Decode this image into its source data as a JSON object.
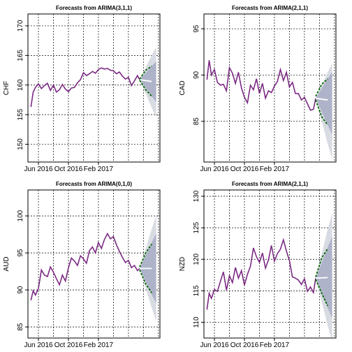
{
  "chart_data": [
    {
      "type": "line",
      "title": "Forecasts from ARIMA(3,1,1)",
      "ylabel": "CHF",
      "xlabel": "",
      "ylim": [
        147,
        172
      ],
      "yticks": [
        150,
        155,
        160,
        165,
        170
      ],
      "xticks": [
        {
          "label": "Jun 2016",
          "x": 6
        },
        {
          "label": "Oct 2016",
          "x": 10
        },
        {
          "label": "Feb 2017",
          "x": 14
        }
      ],
      "xlim": [
        4.6,
        22.2
      ],
      "grid": true,
      "series": [
        {
          "role": "history",
          "color": "#7b2a83",
          "points": [
            [
              5.0,
              156.3
            ],
            [
              5.3,
              158.8
            ],
            [
              5.6,
              159.6
            ],
            [
              6.0,
              160.2
            ],
            [
              6.4,
              159.4
            ],
            [
              6.8,
              159.9
            ],
            [
              7.2,
              160.3
            ],
            [
              7.6,
              159.1
            ],
            [
              8.0,
              160.0
            ],
            [
              8.4,
              158.8
            ],
            [
              8.8,
              159.2
            ],
            [
              9.2,
              160.1
            ],
            [
              9.6,
              159.3
            ],
            [
              10.0,
              158.9
            ],
            [
              10.4,
              159.5
            ],
            [
              10.8,
              159.6
            ],
            [
              11.2,
              160.4
            ],
            [
              11.6,
              160.9
            ],
            [
              12.0,
              162.1
            ],
            [
              12.4,
              161.6
            ],
            [
              12.8,
              161.9
            ],
            [
              13.2,
              162.3
            ],
            [
              13.6,
              162.0
            ],
            [
              14.0,
              162.6
            ],
            [
              14.4,
              162.9
            ],
            [
              14.8,
              162.7
            ],
            [
              15.2,
              162.8
            ],
            [
              15.6,
              162.5
            ],
            [
              16.0,
              162.4
            ],
            [
              16.4,
              161.9
            ],
            [
              16.8,
              162.2
            ],
            [
              17.2,
              161.5
            ],
            [
              17.6,
              161.0
            ],
            [
              18.0,
              161.3
            ],
            [
              18.4,
              159.9
            ],
            [
              18.8,
              160.7
            ],
            [
              19.2,
              161.6
            ],
            [
              19.5,
              160.9
            ]
          ]
        },
        {
          "role": "forecast",
          "color": "#ffffff",
          "points": [
            [
              19.5,
              160.9
            ],
            [
              21.1,
              160.6
            ]
          ]
        },
        {
          "role": "upper-80",
          "color": "#006400",
          "points": [
            [
              19.5,
              161.0
            ],
            [
              20.3,
              162.5
            ],
            [
              21.1,
              163.2
            ]
          ]
        },
        {
          "role": "lower-80",
          "color": "#006400",
          "points": [
            [
              19.5,
              160.8
            ],
            [
              20.3,
              159.2
            ],
            [
              21.1,
              158.1
            ]
          ]
        }
      ],
      "band80": [
        160.9,
        163.2,
        158.1
      ],
      "band95": [
        160.9,
        165.0,
        156.2
      ]
    },
    {
      "type": "line",
      "title": "Forecasts from ARIMA(2,1,1)",
      "ylabel": "CAD",
      "xlabel": "",
      "ylim": [
        80.6,
        96.6
      ],
      "yticks": [
        85,
        90,
        95
      ],
      "xticks": [
        {
          "label": "Jun 2016",
          "x": 6
        },
        {
          "label": "Oct 2016",
          "x": 10
        },
        {
          "label": "Feb 2017",
          "x": 14
        }
      ],
      "xlim": [
        4.6,
        22.2
      ],
      "grid": true,
      "series": [
        {
          "role": "history",
          "color": "#7b2a83",
          "points": [
            [
              5.0,
              89.5
            ],
            [
              5.3,
              91.6
            ],
            [
              5.6,
              90.0
            ],
            [
              6.0,
              90.6
            ],
            [
              6.4,
              89.2
            ],
            [
              6.8,
              88.9
            ],
            [
              7.2,
              89.0
            ],
            [
              7.6,
              88.3
            ],
            [
              8.0,
              90.8
            ],
            [
              8.4,
              90.2
            ],
            [
              8.8,
              89.1
            ],
            [
              9.2,
              90.3
            ],
            [
              9.6,
              88.6
            ],
            [
              10.0,
              87.6
            ],
            [
              10.4,
              87.0
            ],
            [
              10.8,
              88.9
            ],
            [
              11.2,
              88.4
            ],
            [
              11.6,
              89.6
            ],
            [
              12.0,
              88.0
            ],
            [
              12.4,
              89.1
            ],
            [
              12.8,
              87.5
            ],
            [
              13.2,
              88.3
            ],
            [
              13.6,
              88.1
            ],
            [
              14.0,
              88.8
            ],
            [
              14.4,
              89.3
            ],
            [
              14.8,
              90.6
            ],
            [
              15.2,
              89.4
            ],
            [
              15.6,
              90.3
            ],
            [
              16.0,
              88.7
            ],
            [
              16.4,
              89.2
            ],
            [
              16.8,
              88.0
            ],
            [
              17.2,
              88.0
            ],
            [
              17.6,
              87.3
            ],
            [
              18.0,
              87.6
            ],
            [
              18.4,
              86.9
            ],
            [
              18.8,
              86.2
            ],
            [
              19.2,
              86.3
            ],
            [
              19.5,
              87.5
            ]
          ]
        },
        {
          "role": "forecast",
          "color": "#ffffff",
          "points": [
            [
              19.5,
              87.5
            ],
            [
              21.1,
              87.3
            ]
          ]
        },
        {
          "role": "upper-80",
          "color": "#006400",
          "points": [
            [
              19.5,
              87.7
            ],
            [
              20.3,
              89.0
            ],
            [
              21.1,
              89.6
            ]
          ]
        },
        {
          "role": "lower-80",
          "color": "#006400",
          "points": [
            [
              19.5,
              87.3
            ],
            [
              20.3,
              85.5
            ],
            [
              21.1,
              84.6
            ]
          ]
        }
      ],
      "band80": [
        87.5,
        89.6,
        84.6
      ],
      "band95": [
        87.5,
        90.3,
        82.6
      ]
    },
    {
      "type": "line",
      "title": "Forecasts from ARIMA(0,1,0)",
      "ylabel": "AUD",
      "xlabel": "",
      "ylim": [
        83.5,
        103.5
      ],
      "yticks": [
        85,
        90,
        95,
        100
      ],
      "xticks": [
        {
          "label": "Jun 2016",
          "x": 6
        },
        {
          "label": "Oct 2016",
          "x": 10
        },
        {
          "label": "Feb 2017",
          "x": 14
        }
      ],
      "xlim": [
        4.6,
        22.2
      ],
      "grid": true,
      "series": [
        {
          "role": "history",
          "color": "#7b2a83",
          "points": [
            [
              5.0,
              88.6
            ],
            [
              5.3,
              89.9
            ],
            [
              5.6,
              89.3
            ],
            [
              6.0,
              90.2
            ],
            [
              6.4,
              92.7
            ],
            [
              6.8,
              92.0
            ],
            [
              7.2,
              91.8
            ],
            [
              7.6,
              93.1
            ],
            [
              8.0,
              92.4
            ],
            [
              8.4,
              91.5
            ],
            [
              8.8,
              90.7
            ],
            [
              9.2,
              92.0
            ],
            [
              9.6,
              91.2
            ],
            [
              10.0,
              93.0
            ],
            [
              10.4,
              94.3
            ],
            [
              10.8,
              93.9
            ],
            [
              11.2,
              93.3
            ],
            [
              11.6,
              94.6
            ],
            [
              12.0,
              94.2
            ],
            [
              12.4,
              93.6
            ],
            [
              12.8,
              95.3
            ],
            [
              13.2,
              95.8
            ],
            [
              13.6,
              95.0
            ],
            [
              14.0,
              96.4
            ],
            [
              14.4,
              95.6
            ],
            [
              14.8,
              96.8
            ],
            [
              15.2,
              97.6
            ],
            [
              15.6,
              96.9
            ],
            [
              16.0,
              97.2
            ],
            [
              16.4,
              96.1
            ],
            [
              16.8,
              95.2
            ],
            [
              17.2,
              94.4
            ],
            [
              17.6,
              93.7
            ],
            [
              18.0,
              94.0
            ],
            [
              18.4,
              93.0
            ],
            [
              18.8,
              93.3
            ],
            [
              19.2,
              92.6
            ],
            [
              19.5,
              92.9
            ]
          ]
        },
        {
          "role": "forecast",
          "color": "#ffffff",
          "points": [
            [
              19.5,
              92.9
            ],
            [
              21.1,
              92.9
            ]
          ]
        },
        {
          "role": "upper-80",
          "color": "#006400",
          "points": [
            [
              19.5,
              93.1
            ],
            [
              20.3,
              95.0
            ],
            [
              21.1,
              96.2
            ]
          ]
        },
        {
          "role": "lower-80",
          "color": "#006400",
          "points": [
            [
              19.5,
              92.7
            ],
            [
              20.3,
              90.8
            ],
            [
              21.1,
              89.6
            ]
          ]
        }
      ],
      "band80": [
        92.9,
        96.4,
        89.4
      ],
      "band95": [
        92.9,
        98.2,
        87.6
      ]
    },
    {
      "type": "line",
      "title": "Forecasts from ARIMA(2,1,1)",
      "ylabel": "NZD",
      "xlabel": "",
      "ylim": [
        107.5,
        131
      ],
      "yticks": [
        110,
        115,
        120,
        125,
        130
      ],
      "xticks": [
        {
          "label": "Jun 2016",
          "x": 6
        },
        {
          "label": "Oct 2016",
          "x": 10
        },
        {
          "label": "Feb 2017",
          "x": 14
        }
      ],
      "xlim": [
        4.6,
        22.2
      ],
      "grid": true,
      "series": [
        {
          "role": "history",
          "color": "#7b2a83",
          "points": [
            [
              5.0,
              112.0
            ],
            [
              5.3,
              114.6
            ],
            [
              5.6,
              113.8
            ],
            [
              6.0,
              115.2
            ],
            [
              6.4,
              114.9
            ],
            [
              6.8,
              116.5
            ],
            [
              7.2,
              118.0
            ],
            [
              7.6,
              115.1
            ],
            [
              8.0,
              117.4
            ],
            [
              8.4,
              116.3
            ],
            [
              8.8,
              118.7
            ],
            [
              9.2,
              117.0
            ],
            [
              9.6,
              118.2
            ],
            [
              10.0,
              115.9
            ],
            [
              10.4,
              117.6
            ],
            [
              10.8,
              118.9
            ],
            [
              11.2,
              121.8
            ],
            [
              11.6,
              120.4
            ],
            [
              12.0,
              119.5
            ],
            [
              12.4,
              121.0
            ],
            [
              12.8,
              118.6
            ],
            [
              13.2,
              119.9
            ],
            [
              13.6,
              122.2
            ],
            [
              14.0,
              119.7
            ],
            [
              14.4,
              120.9
            ],
            [
              14.8,
              121.6
            ],
            [
              15.2,
              123.1
            ],
            [
              15.6,
              121.3
            ],
            [
              16.0,
              119.8
            ],
            [
              16.4,
              117.2
            ],
            [
              16.8,
              117.0
            ],
            [
              17.2,
              116.7
            ],
            [
              17.6,
              116.0
            ],
            [
              18.0,
              116.9
            ],
            [
              18.4,
              114.9
            ],
            [
              18.8,
              115.6
            ],
            [
              19.2,
              114.7
            ],
            [
              19.5,
              117.0
            ]
          ]
        },
        {
          "role": "forecast",
          "color": "#ffffff",
          "points": [
            [
              19.5,
              117.0
            ],
            [
              21.1,
              117.1
            ]
          ]
        },
        {
          "role": "upper-80",
          "color": "#006400",
          "points": [
            [
              19.5,
              117.2
            ],
            [
              20.3,
              120.2
            ],
            [
              21.1,
              121.7
            ]
          ]
        },
        {
          "role": "lower-80",
          "color": "#006400",
          "points": [
            [
              19.5,
              116.8
            ],
            [
              20.3,
              114.6
            ],
            [
              21.1,
              112.6
            ]
          ]
        }
      ],
      "band80": [
        117.0,
        121.9,
        112.3
      ],
      "band95": [
        117.0,
        124.7,
        109.5
      ]
    }
  ]
}
